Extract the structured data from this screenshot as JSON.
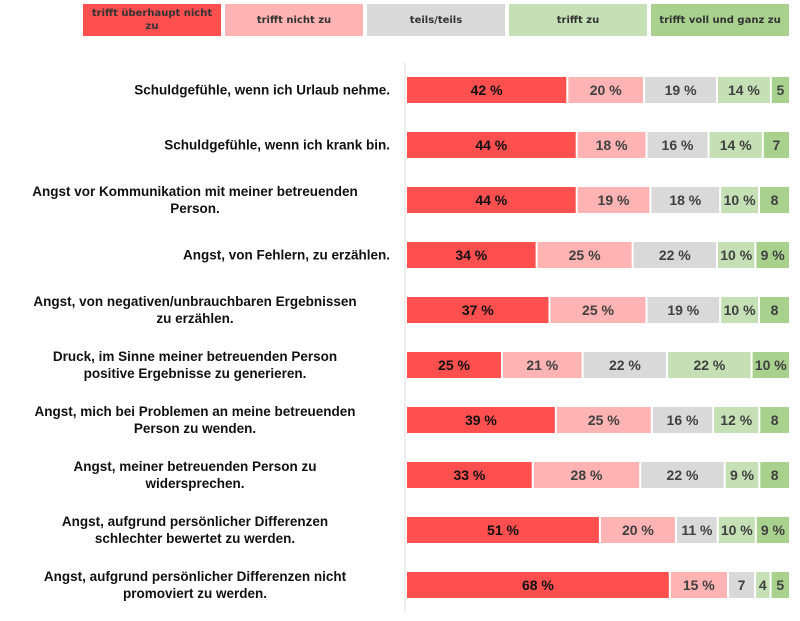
{
  "chart_data": {
    "type": "bar",
    "orientation": "horizontal",
    "stacked": true,
    "percent": true,
    "legend_position": "top",
    "legend": [
      {
        "name": "trifft überhaupt nicht zu",
        "color": "#ff4f4f"
      },
      {
        "name": "trifft nicht zu",
        "color": "#ffb3b3"
      },
      {
        "name": "teils/teils",
        "color": "#d9d9d9"
      },
      {
        "name": "trifft zu",
        "color": "#c5e0b4"
      },
      {
        "name": "trifft voll und ganz zu",
        "color": "#a9d18e"
      }
    ],
    "categories": [
      "Schuldgefühle, wenn ich Urlaub nehme.",
      "Schuldgefühle, wenn ich krank bin.",
      "Angst vor Kommunikation mit meiner betreuenden Person.",
      "Angst, von Fehlern, zu erzählen.",
      "Angst, von negativen/unbrauchbaren Ergebnissen zu erzählen.",
      "Druck, im Sinne meiner betreuenden Person positive Ergebnisse zu generieren.",
      "Angst, mich bei Problemen an meine betreuenden Person zu wenden.",
      "Angst, meiner betreuenden Person zu widersprechen.",
      "Angst, aufgrund persönlicher Differenzen schlechter bewertet zu werden.",
      "Angst, aufgrund persönlicher Differenzen nicht promoviert zu werden."
    ],
    "category_lines": [
      [
        "Schuldgefühle, wenn ich Urlaub nehme."
      ],
      [
        "Schuldgefühle, wenn ich krank bin."
      ],
      [
        "Angst vor Kommunikation mit meiner betreuenden",
        "Person."
      ],
      [
        "Angst, von Fehlern, zu erzählen."
      ],
      [
        "Angst, von negativen/unbrauchbaren Ergebnissen",
        "zu erzählen."
      ],
      [
        "Druck, im Sinne meiner betreuenden Person",
        "positive Ergebnisse zu generieren."
      ],
      [
        "Angst, mich bei Problemen an meine betreuenden",
        "Person zu wenden."
      ],
      [
        "Angst, meiner betreuenden Person zu",
        "widersprechen."
      ],
      [
        "Angst, aufgrund persönlicher Differenzen",
        "schlechter bewertet zu werden."
      ],
      [
        "Angst, aufgrund persönlicher Differenzen nicht",
        "promoviert zu werden."
      ]
    ],
    "series": [
      {
        "name": "trifft überhaupt nicht zu",
        "values": [
          42,
          44,
          44,
          34,
          37,
          25,
          39,
          33,
          51,
          68
        ],
        "labels": [
          "42 %",
          "44 %",
          "44 %",
          "34 %",
          "37 %",
          "25 %",
          "39 %",
          "33 %",
          "51 %",
          "68 %"
        ]
      },
      {
        "name": "trifft nicht zu",
        "values": [
          20,
          18,
          19,
          25,
          25,
          21,
          25,
          28,
          20,
          15
        ],
        "labels": [
          "20 %",
          "18 %",
          "19 %",
          "25 %",
          "25 %",
          "21 %",
          "25 %",
          "28 %",
          "20 %",
          "15 %"
        ]
      },
      {
        "name": "teils/teils",
        "values": [
          19,
          16,
          18,
          22,
          19,
          22,
          16,
          22,
          11,
          7
        ],
        "labels": [
          "19 %",
          "16 %",
          "18 %",
          "22 %",
          "19 %",
          "22 %",
          "16 %",
          "22 %",
          "11 %",
          "7"
        ]
      },
      {
        "name": "trifft zu",
        "values": [
          14,
          14,
          10,
          10,
          10,
          22,
          12,
          9,
          10,
          4
        ],
        "labels": [
          "14 %",
          "14 %",
          "10 %",
          "10 %",
          "10 %",
          "22 %",
          "12 %",
          "9 %",
          "10 %",
          "4"
        ]
      },
      {
        "name": "trifft voll und ganz zu",
        "values": [
          5,
          7,
          8,
          9,
          8,
          10,
          8,
          8,
          9,
          5
        ],
        "labels": [
          "5",
          "7",
          "8",
          "9 %",
          "8",
          "10 %",
          "8",
          "8",
          "9 %",
          "5"
        ]
      }
    ],
    "title": "",
    "xlabel": "",
    "ylabel": "",
    "xlim": [
      0,
      100
    ],
    "grid": false
  }
}
